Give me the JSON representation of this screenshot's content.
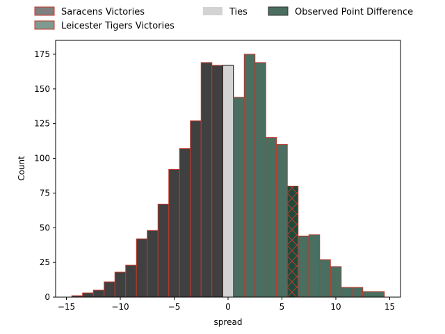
{
  "chart_data": {
    "type": "bar",
    "title": "",
    "xlabel": "spread",
    "ylabel": "Count",
    "xlim": [
      -16,
      16
    ],
    "ylim": [
      0,
      185
    ],
    "xticks": [
      -15,
      -10,
      -5,
      0,
      5,
      10,
      15
    ],
    "yticks": [
      0,
      25,
      50,
      75,
      100,
      125,
      150,
      175
    ],
    "bin_width": 1,
    "grid": false,
    "legend_position": "above-top",
    "legend": [
      {
        "label": "Saracens Victories",
        "color": "#808080",
        "edge": "#c0392b"
      },
      {
        "label": "Leicester Tigers Victories",
        "color": "#7f9a91",
        "edge": "#c0392b"
      },
      {
        "label": "Ties",
        "color": "#d3d3d3",
        "edge": "none"
      },
      {
        "label": "Observed Point Difference",
        "color": "#4a6e60",
        "edge": "#333333"
      }
    ],
    "series": [
      {
        "name": "Saracens Victories",
        "color": "#404040",
        "edge": "#c0392b",
        "bin_left": [
          -15.5,
          -14.5,
          -13.5,
          -12.5,
          -11.5,
          -10.5,
          -9.5,
          -8.5,
          -7.5,
          -6.5,
          -5.5,
          -4.5,
          -3.5,
          -2.5,
          -1.5
        ],
        "values": [
          0,
          1,
          3,
          5,
          11,
          18,
          23,
          42,
          48,
          67,
          92,
          107,
          127,
          169,
          167
        ]
      },
      {
        "name": "Ties",
        "color": "#d3d3d3",
        "edge": "#000000",
        "bin_left": [
          -0.5
        ],
        "values": [
          167
        ]
      },
      {
        "name": "Leicester Tigers Victories",
        "color": "#4a6e60",
        "edge": "#c0392b",
        "bin_left": [
          0.5,
          1.5,
          2.5,
          3.5,
          4.5,
          5.5,
          6.5,
          7.5,
          8.5,
          9.5,
          10.5,
          11.5,
          12.5,
          13.5
        ],
        "values": [
          144,
          175,
          169,
          115,
          110,
          80,
          44,
          45,
          27,
          22,
          7,
          7,
          4,
          4
        ],
        "highlight_bin_left": 5.5,
        "highlight_color": "#1f4a3a"
      }
    ]
  }
}
